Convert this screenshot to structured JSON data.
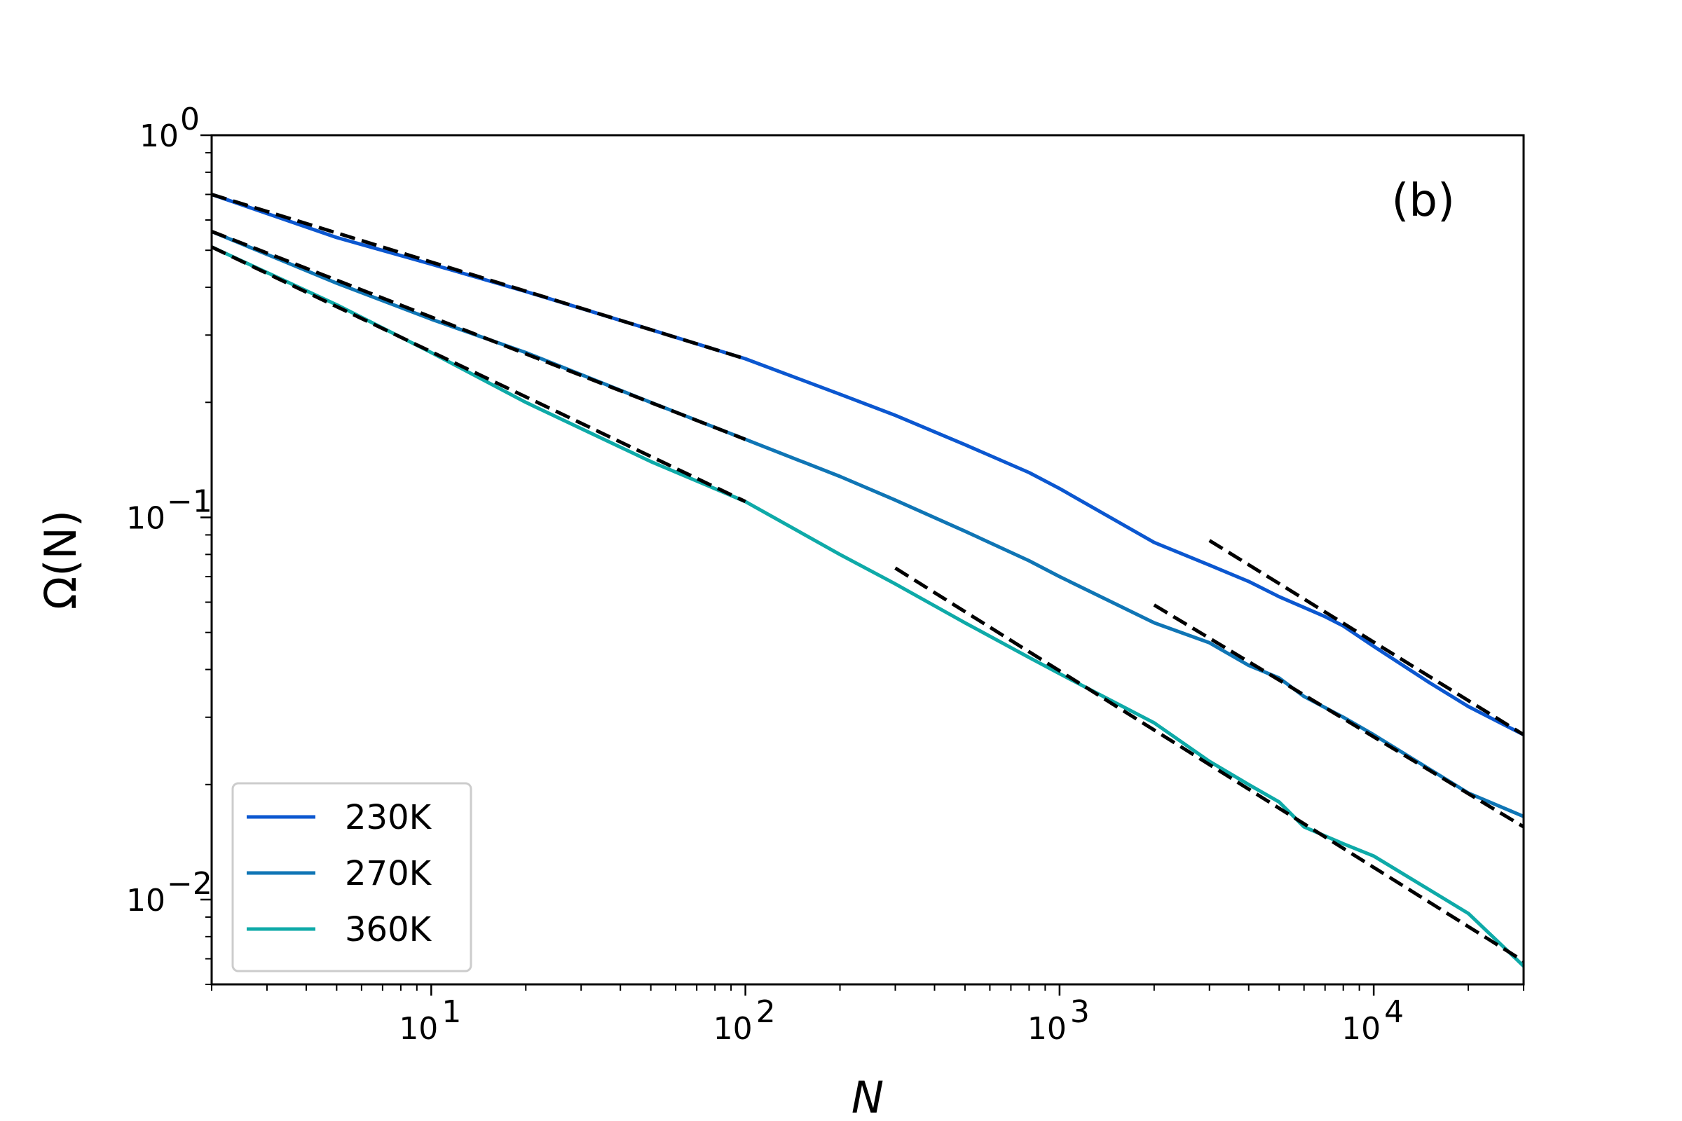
{
  "chart_data": {
    "type": "line",
    "title": "",
    "panel_label": "(b)",
    "xlabel": "N",
    "ylabel": "Ω(N)",
    "xscale": "log",
    "yscale": "log",
    "xlim": [
      2,
      30000
    ],
    "ylim": [
      0.006,
      1.0
    ],
    "grid": false,
    "legend_position": "lower-left",
    "x_ticks": [
      {
        "value": 10,
        "base": "10",
        "exp": "1"
      },
      {
        "value": 100,
        "base": "10",
        "exp": "2"
      },
      {
        "value": 1000,
        "base": "10",
        "exp": "3"
      },
      {
        "value": 10000,
        "base": "10",
        "exp": "4"
      }
    ],
    "y_ticks": [
      {
        "value": 1.0,
        "base": "10",
        "exp": "0"
      },
      {
        "value": 0.1,
        "base": "10",
        "exp": "−1"
      },
      {
        "value": 0.01,
        "base": "10",
        "exp": "−2"
      }
    ],
    "series": [
      {
        "name": "230K",
        "color": "#0b57d0",
        "x": [
          2,
          5,
          10,
          20,
          50,
          100,
          200,
          300,
          500,
          800,
          1000,
          2000,
          3000,
          4000,
          5000,
          7000,
          8000,
          10000,
          15000,
          20000,
          30000
        ],
        "y": [
          0.7,
          0.54,
          0.46,
          0.39,
          0.31,
          0.26,
          0.21,
          0.185,
          0.155,
          0.131,
          0.119,
          0.086,
          0.075,
          0.068,
          0.062,
          0.055,
          0.052,
          0.046,
          0.037,
          0.032,
          0.027
        ]
      },
      {
        "name": "270K",
        "color": "#0f75b5",
        "x": [
          2,
          5,
          10,
          20,
          50,
          100,
          200,
          300,
          500,
          800,
          1000,
          2000,
          3000,
          4000,
          5000,
          6000,
          8000,
          10000,
          20000,
          30000
        ],
        "y": [
          0.56,
          0.41,
          0.33,
          0.27,
          0.2,
          0.16,
          0.128,
          0.111,
          0.092,
          0.077,
          0.07,
          0.053,
          0.047,
          0.041,
          0.038,
          0.034,
          0.03,
          0.027,
          0.019,
          0.0165
        ]
      },
      {
        "name": "360K",
        "color": "#0eaaa8",
        "x": [
          2,
          5,
          10,
          20,
          50,
          100,
          200,
          300,
          500,
          800,
          1000,
          2000,
          3000,
          4000,
          5000,
          6000,
          8000,
          10000,
          20000,
          30000
        ],
        "y": [
          0.51,
          0.36,
          0.27,
          0.2,
          0.14,
          0.11,
          0.08,
          0.067,
          0.053,
          0.043,
          0.039,
          0.029,
          0.023,
          0.02,
          0.018,
          0.0155,
          0.014,
          0.013,
          0.0092,
          0.0067
        ]
      }
    ],
    "fit_lines": [
      {
        "style": "dashed",
        "color": "#000000",
        "x": [
          2,
          100
        ],
        "y": [
          0.7,
          0.26
        ]
      },
      {
        "style": "dashed",
        "color": "#000000",
        "x": [
          2,
          100
        ],
        "y": [
          0.56,
          0.16
        ]
      },
      {
        "style": "dashed",
        "color": "#000000",
        "x": [
          2,
          100
        ],
        "y": [
          0.51,
          0.11
        ]
      },
      {
        "style": "dashed",
        "color": "#000000",
        "x": [
          3000,
          30000
        ],
        "y": [
          0.087,
          0.027
        ]
      },
      {
        "style": "dashed",
        "color": "#000000",
        "x": [
          2000,
          30000
        ],
        "y": [
          0.059,
          0.0155
        ]
      },
      {
        "style": "dashed",
        "color": "#000000",
        "x": [
          300,
          30000
        ],
        "y": [
          0.0737,
          0.0069
        ]
      }
    ]
  }
}
